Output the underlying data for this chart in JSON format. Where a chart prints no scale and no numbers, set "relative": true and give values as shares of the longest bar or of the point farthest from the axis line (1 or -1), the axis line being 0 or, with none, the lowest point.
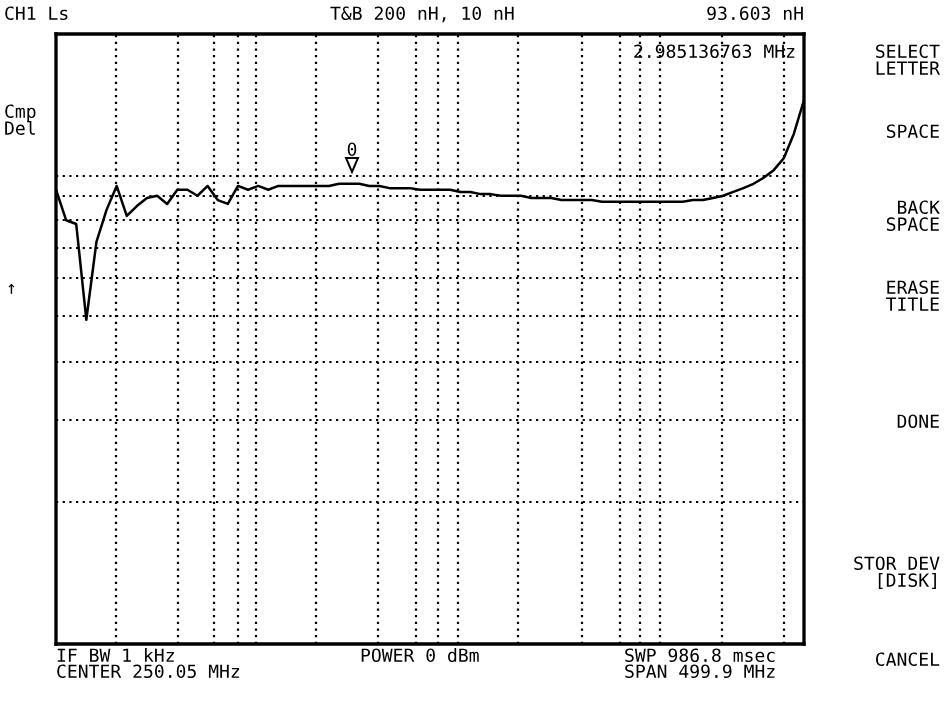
{
  "chart_data": {
    "type": "line",
    "title": "CH1 Ls",
    "subtitle": "T&B 200 nH, 10 nH",
    "relative": true,
    "categories": [
      null,
      null,
      null,
      null,
      null,
      null,
      null,
      null,
      null,
      null,
      null,
      null,
      null,
      null,
      null,
      null,
      null,
      null,
      null,
      null,
      null,
      null,
      null,
      null,
      null,
      null,
      null,
      null,
      null,
      null,
      null,
      null,
      null,
      null,
      null,
      null,
      null,
      null,
      null,
      null,
      null,
      null,
      null,
      null,
      null,
      null,
      null,
      null,
      null,
      null,
      null,
      null,
      null,
      null,
      null,
      null,
      null,
      null,
      null,
      null,
      null,
      null,
      null,
      null,
      null,
      null,
      null,
      null,
      null,
      null,
      null,
      null,
      null,
      null,
      null
    ],
    "series": [
      {
        "color": "#000000",
        "values": [
          0.835,
          0.779,
          0.772,
          0.596,
          0.739,
          0.798,
          0.842,
          0.787,
          0.805,
          0.82,
          0.824,
          0.809,
          0.835,
          0.835,
          0.824,
          0.842,
          0.816,
          0.809,
          0.842,
          0.835,
          0.842,
          0.835,
          0.842,
          0.842,
          0.842,
          0.842,
          0.842,
          0.842,
          0.846,
          0.846,
          0.846,
          0.842,
          0.842,
          0.838,
          0.838,
          0.838,
          0.835,
          0.835,
          0.835,
          0.835,
          0.831,
          0.831,
          0.827,
          0.827,
          0.824,
          0.824,
          0.824,
          0.82,
          0.82,
          0.82,
          0.816,
          0.816,
          0.816,
          0.816,
          0.813,
          0.813,
          0.813,
          0.813,
          0.813,
          0.813,
          0.813,
          0.813,
          0.813,
          0.816,
          0.816,
          0.82,
          0.824,
          0.831,
          0.838,
          0.846,
          0.857,
          0.871,
          0.893,
          0.938,
          1
        ]
      }
    ],
    "grid": true,
    "annotations": [
      "93.603 nH",
      "2.985136763 MHz",
      "Cmp\nDel",
      "↑",
      "IF BW 1 kHz",
      "CENTER 250.05 MHz",
      "POWER 0 dBm",
      "SWP 986.8 msec",
      "SPAN 499.9 MHz",
      "SELECT\nLETTER",
      "SPACE",
      "BACK\nSPACE",
      "ERASE\nTITLE",
      "DONE",
      "STOR DEV\n[DISK]",
      "CANCEL",
      "0"
    ]
  }
}
